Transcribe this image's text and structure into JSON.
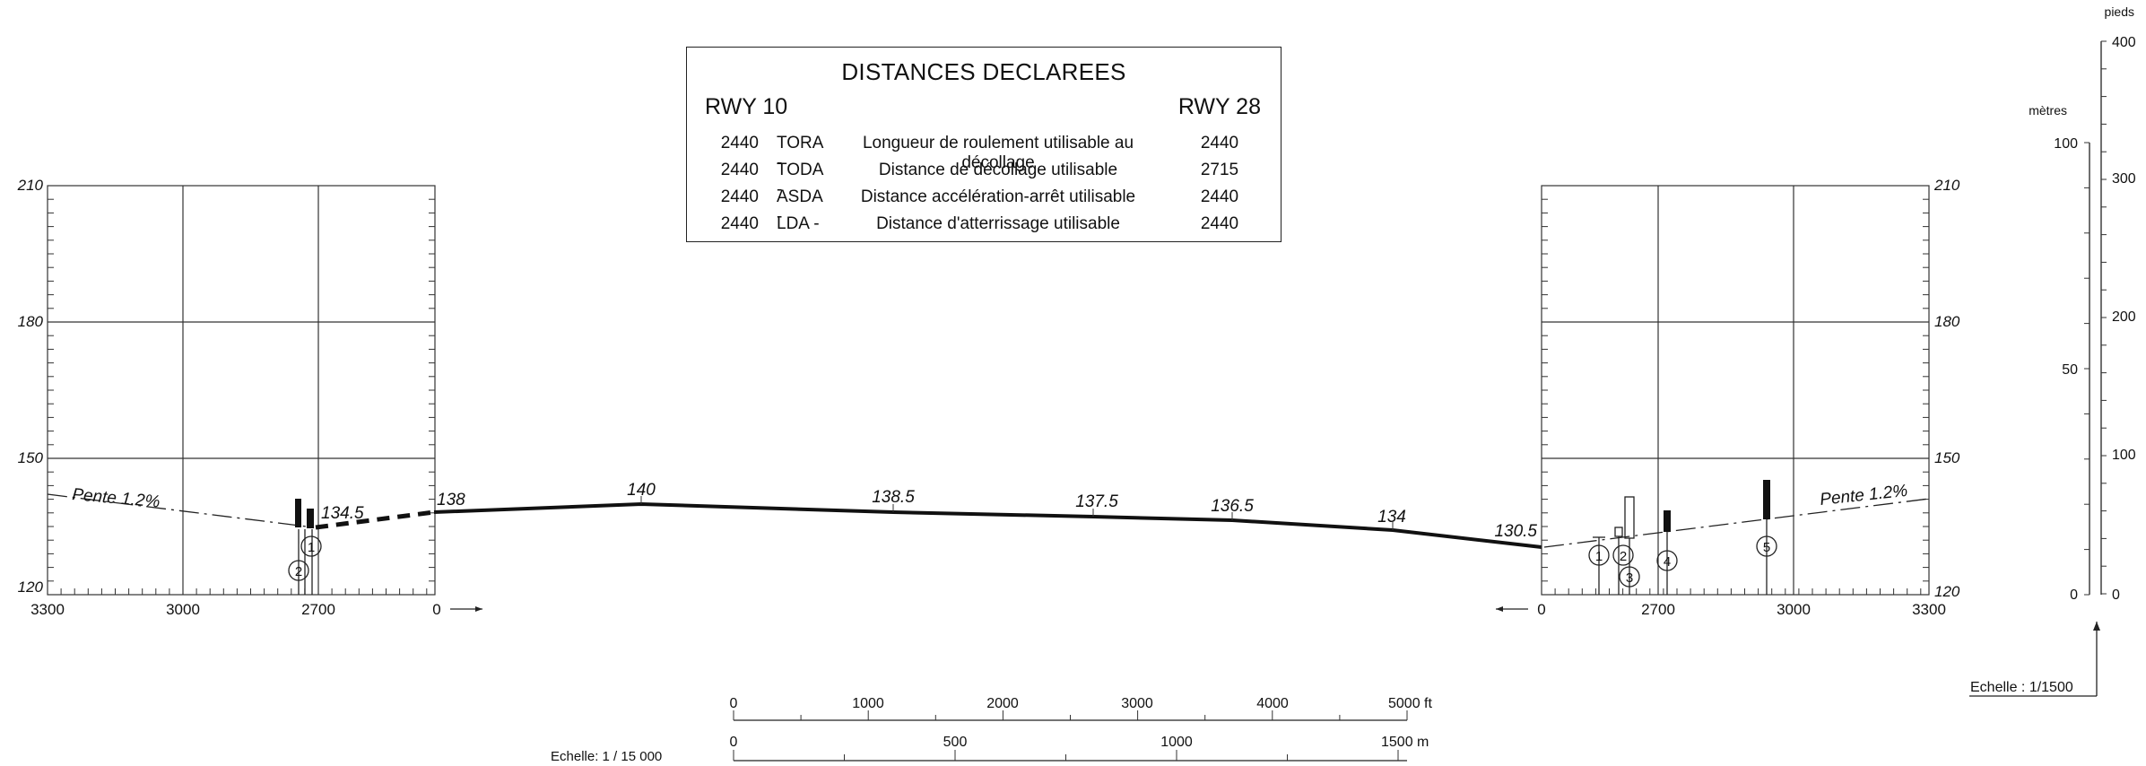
{
  "declared_distances": {
    "title": "DISTANCES DECLAREES",
    "rwy_left": "RWY 10",
    "rwy_right": "RWY 28",
    "rows": [
      {
        "left": "2440",
        "code": "TORA -",
        "desc": "Longueur de roulement utilisable au décollage",
        "right": "2440"
      },
      {
        "left": "2440",
        "code": "TODA -",
        "desc": "Distance de décollage utilisable",
        "right": "2715"
      },
      {
        "left": "2440",
        "code": "ASDA -",
        "desc": "Distance accélération-arrêt utilisable",
        "right": "2440"
      },
      {
        "left": "2440",
        "code": "LDA   -",
        "desc": "Distance d'atterrissage utilisable",
        "right": "2440"
      }
    ]
  },
  "left_panel": {
    "y_labels": [
      "210",
      "180",
      "150",
      "120"
    ],
    "x_labels": [
      "3300",
      "3000",
      "2700",
      "0"
    ],
    "slope": "Pente 1.2%",
    "threshold_elev": "134.5",
    "markers": [
      "1",
      "2"
    ]
  },
  "right_panel": {
    "y_labels": [
      "210",
      "180",
      "150",
      "120"
    ],
    "x_labels": [
      "0",
      "2700",
      "3000",
      "3300"
    ],
    "slope": "Pente 1.2%",
    "threshold_elev": "130.5",
    "markers": [
      "1",
      "2",
      "3",
      "4",
      "5"
    ]
  },
  "runway_profile": {
    "elevations": [
      "138",
      "140",
      "138.5",
      "137.5",
      "136.5",
      "134"
    ]
  },
  "vertical_scale": {
    "ft_unit": "pieds",
    "m_unit": "mètres",
    "ft_labels": [
      "400",
      "300",
      "200",
      "100",
      "0"
    ],
    "m_labels": [
      "100",
      "50",
      "0"
    ],
    "scale_text": "Echelle :  1/1500"
  },
  "horizontal_scale": {
    "ft_labels": [
      "0",
      "1000",
      "2000",
      "3000",
      "4000",
      "5000 ft"
    ],
    "m_labels": [
      "0",
      "500",
      "1000",
      "1500 m"
    ],
    "scale_text": "Echelle: 1 / 15 000"
  }
}
